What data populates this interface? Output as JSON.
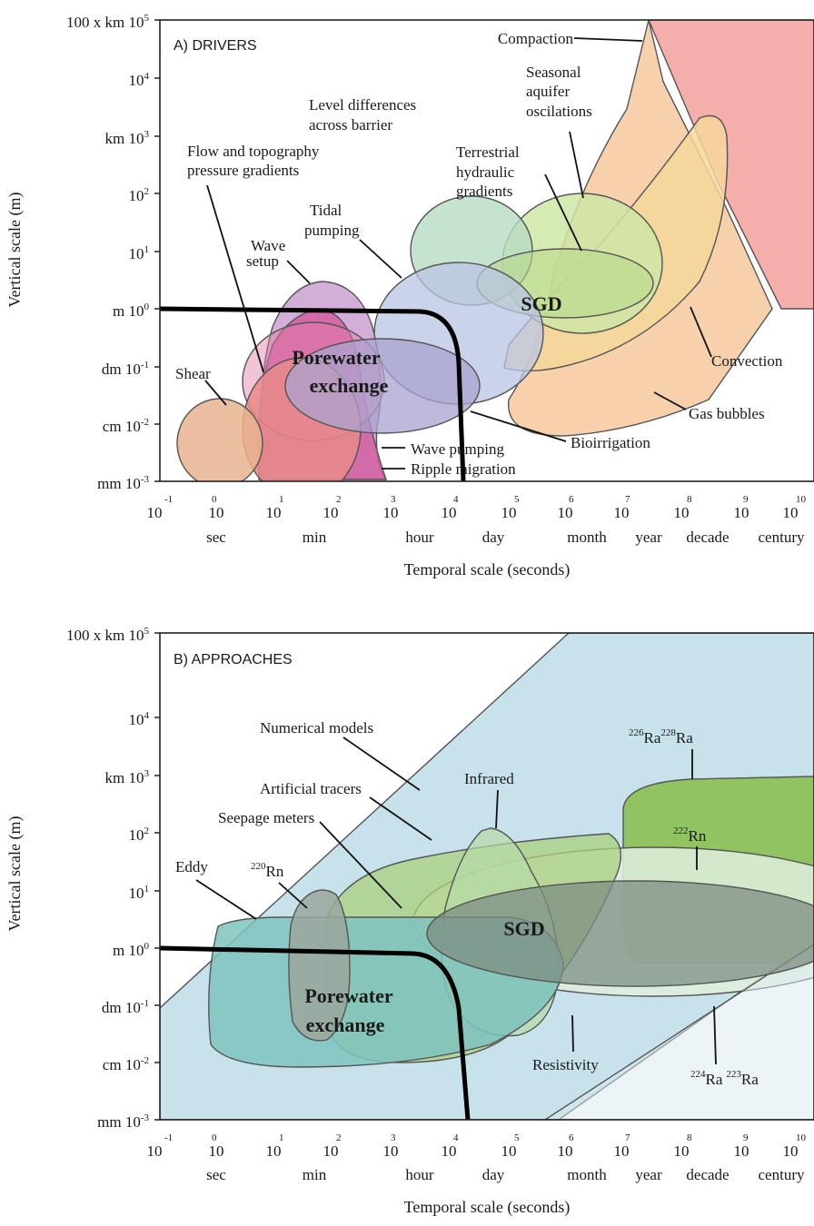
{
  "panel_a": {
    "title": "A) DRIVERS",
    "y_axis_title": "Vertical scale (m)",
    "x_axis_title": "Temporal scale (seconds)",
    "y_ticks": [
      {
        "prefix": "100 x km",
        "base": "10",
        "exp": "5"
      },
      {
        "prefix": "",
        "base": "10",
        "exp": "4"
      },
      {
        "prefix": "km",
        "base": "10",
        "exp": "3"
      },
      {
        "prefix": "",
        "base": "10",
        "exp": "2"
      },
      {
        "prefix": "",
        "base": "10",
        "exp": "1"
      },
      {
        "prefix": "m",
        "base": "10",
        "exp": "0"
      },
      {
        "prefix": "dm",
        "base": "10",
        "exp": "-1"
      },
      {
        "prefix": "cm",
        "base": "10",
        "exp": "-2"
      },
      {
        "prefix": "mm",
        "base": "10",
        "exp": "-3"
      }
    ],
    "x_ticks": [
      {
        "base": "10",
        "exp": "-1"
      },
      {
        "base": "10",
        "exp": "0"
      },
      {
        "base": "10",
        "exp": "1"
      },
      {
        "base": "10",
        "exp": "2"
      },
      {
        "base": "10",
        "exp": "3"
      },
      {
        "base": "10",
        "exp": "4"
      },
      {
        "base": "10",
        "exp": "5"
      },
      {
        "base": "10",
        "exp": "6"
      },
      {
        "base": "10",
        "exp": "7"
      },
      {
        "base": "10",
        "exp": "8"
      },
      {
        "base": "10",
        "exp": "9"
      },
      {
        "base": "10",
        "exp": "10"
      }
    ],
    "x_units": [
      "sec",
      "min",
      "hour",
      "day",
      "month",
      "year",
      "decade",
      "century"
    ],
    "labels": {
      "compaction": "Compaction",
      "seasonal": [
        "Seasonal",
        "aquifer",
        "oscilations"
      ],
      "level_diff": [
        "Level differences",
        "across barrier"
      ],
      "flow_topo": [
        "Flow and topography",
        "pressure gradients"
      ],
      "terrestrial": [
        "Terrestrial",
        "hydraulic",
        "gradients"
      ],
      "tidal": [
        "Tidal",
        "pumping"
      ],
      "wave_setup": [
        "Wave",
        "setup"
      ],
      "sgd": "SGD",
      "porewater": [
        "Porewater",
        "exchange"
      ],
      "shear": "Shear",
      "convection": "Convection",
      "gas_bubbles": "Gas bubbles",
      "bioirrigation": "Bioirrigation",
      "wave_pumping": "Wave pumping",
      "ripple": "Ripple migration"
    }
  },
  "panel_b": {
    "title": "B) APPROACHES",
    "y_axis_title": "Vertical scale (m)",
    "x_axis_title": "Temporal scale (seconds)",
    "labels": {
      "numerical": "Numerical models",
      "ra226_228": {
        "iso1": "226",
        "el1": "Ra",
        "iso2": "228",
        "el2": "Ra"
      },
      "artificial": "Artificial tracers",
      "infrared": "Infrared",
      "seepage": "Seepage meters",
      "rn222": {
        "iso": "222",
        "el": "Rn"
      },
      "eddy": "Eddy",
      "rn220": {
        "iso": "220",
        "el": "Rn"
      },
      "sgd": "SGD",
      "porewater": [
        "Porewater",
        "exchange"
      ],
      "resistivity": "Resistivity",
      "ra224_223": {
        "iso1": "224",
        "el1": "Ra",
        "iso2": "223",
        "el2": "Ra"
      }
    }
  },
  "colors": {
    "compaction": "#f4a6a2",
    "gas_bubbles": "#f6c99d",
    "convection": "#f4d79a",
    "seasonal": "#cfe6a6",
    "terrestrial": "#b8d98a",
    "level_diff": "#b7dcc3",
    "tidal": "#b9c4e4",
    "wave_setup": "#c89ad0",
    "shear": "#e7b38f",
    "ripple": "#d35a9c",
    "wave_pumping": "#e88a8a",
    "bioirrigation": "#a9a3cf",
    "numerical": "#c7e2ea",
    "ra226": "#8fc15a",
    "rn222": "#dfeede",
    "ra224": "#d9eaf0",
    "artificial": "#a9cf7e",
    "infrared": "#b8dca8",
    "eddy": "#7fc3c0",
    "rn220": "#9aa79c",
    "sgd_core": "#7e8d83",
    "resistivity": "#b9d98e",
    "boundary_line": "#000000"
  }
}
